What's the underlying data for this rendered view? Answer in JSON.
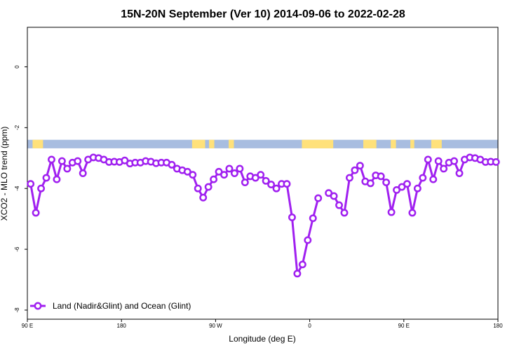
{
  "chart_data": {
    "type": "line",
    "title": "15N-20N September (Ver 10)   2014-09-06 to 2022-02-28",
    "xlabel": "Longitude (deg E)",
    "ylabel": "XCO2 - MLO trend (ppm)",
    "xlim": [
      90,
      450
    ],
    "ylim": [
      -8.3,
      1.3
    ],
    "x_ticks": [
      {
        "value": 90,
        "label": "90 E"
      },
      {
        "value": 162,
        "label": "180"
      },
      {
        "value": 234,
        "label": "90 W"
      },
      {
        "value": 306,
        "label": "0"
      },
      {
        "value": 378,
        "label": "90 E"
      },
      {
        "value": 450,
        "label": "180"
      }
    ],
    "y_ticks": [
      0,
      -2,
      -4,
      -6,
      -8
    ],
    "series": [
      {
        "name": "Land (Nadir&Glint) and Ocean (Glint)",
        "color": "#a020f0",
        "x": [
          92.5,
          96.5,
          100.5,
          104.5,
          108.5,
          112.5,
          116.5,
          120.5,
          124.5,
          128.5,
          132.5,
          136.5,
          140.5,
          144.5,
          148.5,
          152.5,
          156.5,
          160.5,
          164.5,
          168.5,
          172.5,
          176.5,
          180.5,
          184.5,
          188.5,
          192.5,
          196.5,
          200.5,
          204.5,
          208.5,
          212.5,
          216.5,
          220.5,
          224.5,
          228.5,
          232.5,
          236.5,
          240.5,
          244.5,
          248.5,
          252.5,
          256.5,
          260.5,
          264.5,
          268.5,
          272.5,
          276.5,
          280.5,
          284.5,
          288.5,
          292.5,
          296.5,
          300.5,
          304.5,
          308.5,
          312.5,
          316.5,
          320.5,
          324.5,
          328.5,
          332.5,
          336.5,
          340.5,
          344.5,
          348.5,
          352.5,
          356.5,
          360.5,
          364.5,
          368.5,
          372.5,
          376.5,
          380.5,
          384.5,
          388.5,
          392.5,
          396.5,
          400.5,
          404.5,
          408.5,
          412.5,
          416.5,
          420.5,
          424.5,
          428.5,
          432.5,
          436.5,
          440.5,
          444.5,
          448.5
        ],
        "values": [
          -3.85,
          -4.8,
          -4.0,
          -3.65,
          -3.05,
          -3.7,
          -3.1,
          -3.35,
          -3.15,
          -3.1,
          -3.5,
          -3.05,
          -2.98,
          -3.0,
          -3.05,
          -3.13,
          -3.12,
          -3.13,
          -3.08,
          -3.18,
          -3.15,
          -3.15,
          -3.1,
          -3.12,
          -3.17,
          -3.15,
          -3.15,
          -3.22,
          -3.35,
          -3.4,
          -3.45,
          -3.55,
          -4.0,
          -4.3,
          -3.95,
          -3.7,
          -3.45,
          -3.55,
          -3.35,
          -3.5,
          -3.35,
          -3.8,
          -3.6,
          -3.65,
          -3.55,
          -3.75,
          -3.87,
          -4.0,
          -3.85,
          -3.85,
          -4.95,
          -6.8,
          -6.5,
          -5.7,
          -4.98,
          -4.32,
          null,
          -4.15,
          -4.25,
          -4.55,
          -4.8,
          -3.65,
          -3.4,
          -3.25,
          -3.77,
          -3.83,
          -3.57,
          -3.6,
          -3.8,
          -4.78,
          -4.05,
          -3.95,
          -3.85,
          -4.8,
          -4.0,
          -3.65,
          -3.05,
          -3.7,
          -3.1,
          -3.35,
          -3.15,
          -3.1,
          -3.5,
          -3.05,
          -2.98,
          -3.0,
          -3.05,
          -3.13,
          -3.12,
          -3.13
        ]
      }
    ],
    "land_mask_band": {
      "y_range": [
        -2.68,
        -2.4
      ],
      "ocean_color": "#a8bde0",
      "land_color": "#ffe17a",
      "land_segments": [
        [
          94,
          102
        ],
        [
          216,
          226
        ],
        [
          229,
          233
        ],
        [
          244,
          248
        ],
        [
          300,
          324
        ],
        [
          347,
          357
        ],
        [
          368,
          372
        ],
        [
          383,
          386
        ],
        [
          399,
          407
        ]
      ]
    },
    "grid": false,
    "legend": {
      "position": "bottom-left"
    }
  }
}
